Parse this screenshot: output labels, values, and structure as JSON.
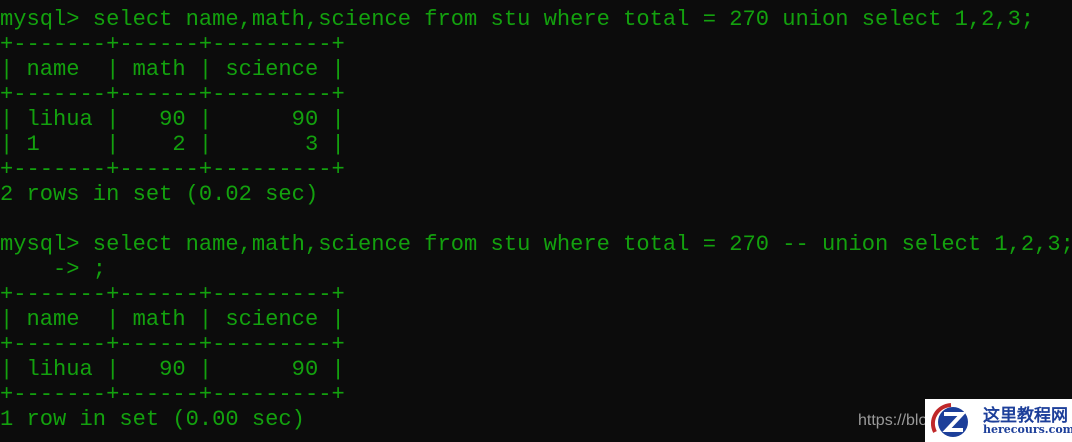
{
  "terminal": {
    "lines": [
      "mysql> select name,math,science from stu where total = 270 union select 1,2,3;",
      "+-------+------+---------+",
      "| name  | math | science |",
      "+-------+------+---------+",
      "| lihua |   90 |      90 |",
      "| 1     |    2 |       3 |",
      "+-------+------+---------+",
      "2 rows in set (0.02 sec)",
      "",
      "mysql> select name,math,science from stu where total = 270 -- union select 1,2,3;",
      "    -> ;",
      "+-------+------+---------+",
      "| name  | math | science |",
      "+-------+------+---------+",
      "| lihua |   90 |      90 |",
      "+-------+------+---------+",
      "1 row in set (0.00 sec)"
    ],
    "text_color": "#13a10e",
    "background": "#0c0c0c"
  },
  "watermark": {
    "url_text": "https://blo",
    "brand_cn": "这里教程网",
    "brand_en": "herecours.com"
  }
}
